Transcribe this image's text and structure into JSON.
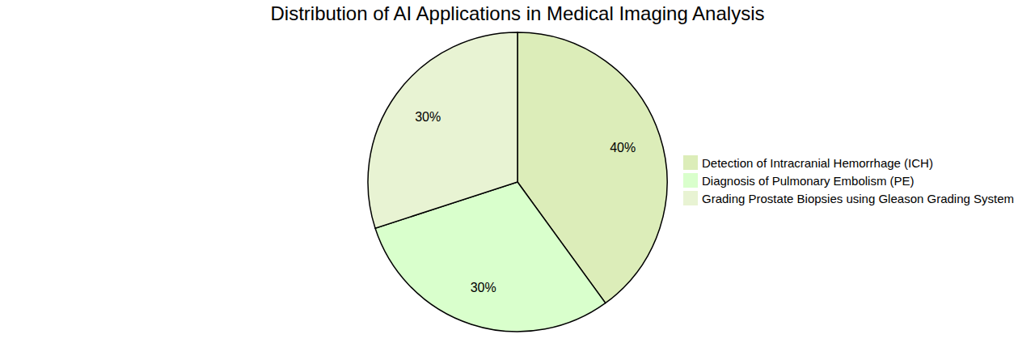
{
  "chart_data": {
    "type": "pie",
    "title": "Distribution of AI Applications in Medical Imaging Analysis",
    "categories": [
      "Detection of Intracranial Hemorrhage (ICH)",
      "Diagnosis of Pulmonary Embolism (PE)",
      "Grading Prostate Biopsies using Gleason Grading System"
    ],
    "values": [
      40,
      30,
      30
    ],
    "value_labels": [
      "40%",
      "30%",
      "30%"
    ],
    "colors": [
      "#dcedb9",
      "#d9ffcc",
      "#e8f3d3"
    ],
    "data_labels": true,
    "legend": "right"
  }
}
